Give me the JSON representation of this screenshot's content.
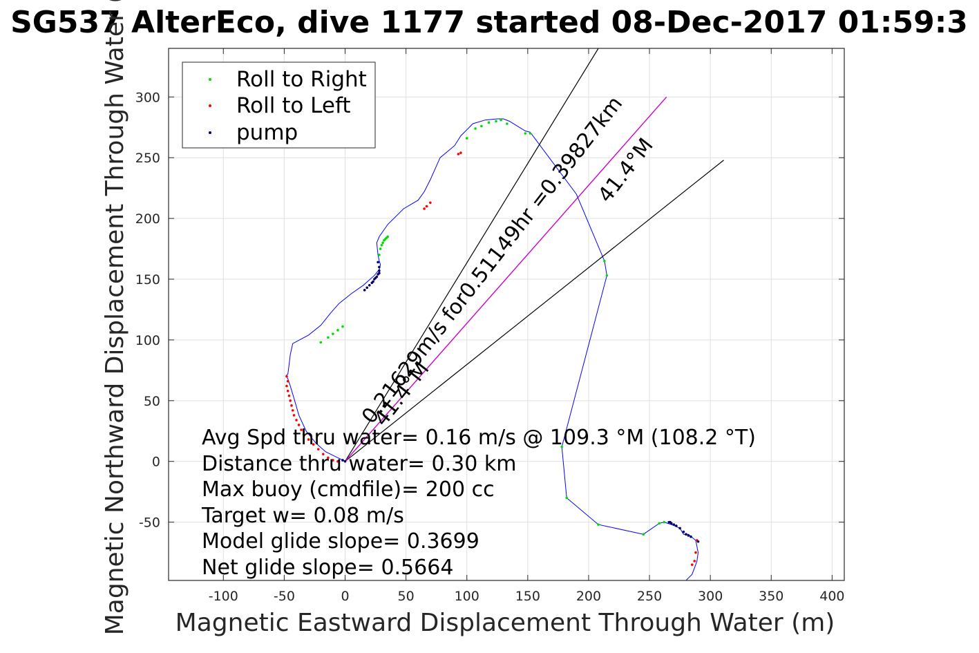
{
  "chart_data": {
    "type": "line",
    "title": "SG537 AlterEco, dive 1177 started 08-Dec-2017 01:59:3",
    "xlabel": "Magnetic Eastward Displacement Through Water (m)",
    "ylabel": "Magnetic Northward Displacement Through Water (",
    "xlim": [
      -145,
      410
    ],
    "ylim": [
      -98,
      340
    ],
    "grid": true,
    "x_ticks": [
      "-100",
      "-50",
      "0",
      "50",
      "100",
      "150",
      "200",
      "250",
      "300",
      "350",
      "400"
    ],
    "y_ticks": [
      "300",
      "250",
      "200",
      "150",
      "100",
      "50",
      "0",
      "-50"
    ],
    "legend": {
      "placement": "top-left",
      "entries": [
        "Roll to Right",
        "Roll to Left",
        "pump"
      ]
    },
    "colors": {
      "track": "#0000ff",
      "roll_right": "#00dd00",
      "roll_left": "#ff0000",
      "pump": "#000066",
      "mean_line": "#cc00cc",
      "cone_lines": "#000000"
    },
    "track": {
      "x": [
        0,
        -8,
        -16,
        -24,
        -32,
        -38,
        -42,
        -45,
        -47,
        -48,
        -48,
        -47,
        -46,
        -45,
        -43,
        -30,
        -20,
        -12,
        -5,
        5,
        15,
        24,
        28,
        29,
        28,
        27,
        26,
        28,
        35,
        48,
        60,
        65,
        70,
        78,
        90,
        95,
        100,
        105,
        115,
        125,
        130,
        135,
        148,
        152,
        190,
        213,
        215,
        178,
        182,
        208,
        245,
        258,
        262,
        265,
        268,
        275,
        278,
        282,
        288,
        290,
        289,
        288,
        285,
        280
      ],
      "y": [
        0,
        4,
        8,
        15,
        25,
        38,
        52,
        62,
        68,
        70,
        71,
        72,
        80,
        88,
        97,
        104,
        112,
        122,
        130,
        138,
        145,
        153,
        158,
        162,
        165,
        170,
        180,
        185,
        195,
        208,
        215,
        222,
        232,
        250,
        260,
        268,
        273,
        278,
        281,
        282,
        282,
        280,
        272,
        271,
        220,
        165,
        153,
        12,
        -30,
        -52,
        -60,
        -51,
        -50,
        -51,
        -52,
        -55,
        -60,
        -60,
        -65,
        -75,
        -82,
        -85,
        -93,
        -98
      ]
    },
    "roll_right_points": {
      "x": [
        100,
        107,
        112,
        118,
        124,
        128,
        152,
        148,
        133,
        213,
        215,
        178,
        182,
        208,
        245,
        258,
        262,
        -20,
        -14,
        -10,
        -6,
        -2,
        28,
        29,
        30,
        31,
        32,
        33,
        34,
        35
      ],
      "y": [
        266,
        274,
        276,
        279,
        280,
        281,
        270,
        270,
        278,
        165,
        153,
        12,
        -30,
        -52,
        -60,
        -51,
        -50,
        98,
        102,
        105,
        108,
        111,
        170,
        175,
        178,
        180,
        182,
        183,
        184,
        185
      ]
    },
    "roll_left_points": {
      "x": [
        -48,
        -47,
        -48,
        -47,
        -46,
        -45,
        -44,
        -43,
        -42,
        -40,
        -38,
        -36,
        -34,
        -30,
        -26,
        -22,
        -18,
        -14,
        -10,
        -6,
        65,
        67,
        70,
        93,
        95,
        289,
        288,
        287,
        285
      ],
      "y": [
        70,
        66,
        62,
        58,
        54,
        50,
        46,
        42,
        38,
        34,
        30,
        26,
        22,
        18,
        14,
        10,
        6,
        3,
        1,
        0,
        208,
        210,
        213,
        253,
        254,
        -65,
        -75,
        -82,
        -85
      ]
    },
    "pump_points": {
      "x": [
        16,
        18,
        20,
        22,
        23,
        24,
        25,
        26,
        27,
        28,
        28,
        28,
        27,
        266,
        267,
        268,
        270,
        272,
        275,
        278,
        280,
        282,
        284,
        290,
        0,
        -2
      ],
      "y": [
        141,
        143,
        145,
        147,
        148,
        150,
        151,
        152,
        154,
        155,
        157,
        160,
        164,
        -50,
        -50,
        -51,
        -52,
        -53,
        -55,
        -58,
        -60,
        -61,
        -62,
        -66,
        0,
        1
      ]
    },
    "mean_line": {
      "x": [
        0,
        264
      ],
      "y": [
        0,
        300
      ]
    },
    "cone_lines": [
      {
        "x": [
          0,
          208
        ],
        "y": [
          0,
          340
        ]
      },
      {
        "x": [
          0,
          311
        ],
        "y": [
          0,
          248
        ]
      }
    ],
    "rotated_labels": [
      {
        "text": "0.21629m/s for0.51149hr =0.39827km",
        "x": 22,
        "y": 30,
        "angle": -52
      },
      {
        "text": "41.4°M",
        "x": 32,
        "y": 28,
        "angle": -52
      },
      {
        "text": "41.4°M",
        "x": 216,
        "y": 212,
        "angle": -52
      }
    ],
    "annotations": [
      "Avg Spd thru water=  0.16 m/s @ 109.3 °M (108.2 °T)",
      "Distance thru water=  0.30 km",
      "Max buoy (cmdfile)= 200 cc",
      "Target w= 0.08 m/s",
      "Model glide slope= 0.3699",
      "Net glide slope= 0.5664"
    ]
  }
}
